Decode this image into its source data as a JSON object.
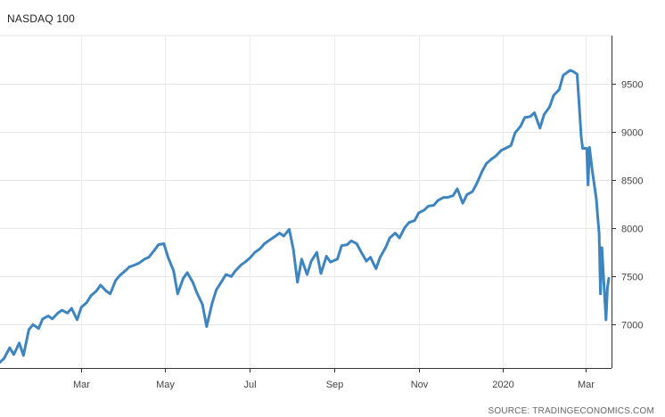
{
  "chart_data": {
    "type": "line",
    "title": "NASDAQ 100",
    "source": "SOURCE: TRADINGECONOMICS.COM",
    "xlabel": "",
    "ylabel": "",
    "ylim": [
      6550,
      10000
    ],
    "grid": true,
    "legend": "none",
    "line_color": "#3d85c0",
    "y_ticks": [
      7000,
      7500,
      8000,
      8500,
      9000,
      9500
    ],
    "y_tick_labels": [
      "7000",
      "7500",
      "8000",
      "8500",
      "9000",
      "9500"
    ],
    "x_ticks": [
      "2019-03-01",
      "2019-05-01",
      "2019-07-01",
      "2019-09-01",
      "2019-11-01",
      "2020-01-01",
      "2020-03-01"
    ],
    "x_tick_labels": [
      "Mar",
      "May",
      "Jul",
      "Sep",
      "Nov",
      "2020",
      "Mar"
    ],
    "xlim": [
      "2019-01-01",
      "2020-03-20"
    ],
    "series": [
      {
        "name": "",
        "x": [
          "2019-01-01",
          "2019-01-04",
          "2019-01-08",
          "2019-01-11",
          "2019-01-15",
          "2019-01-18",
          "2019-01-22",
          "2019-01-25",
          "2019-01-29",
          "2019-02-01",
          "2019-02-05",
          "2019-02-08",
          "2019-02-12",
          "2019-02-15",
          "2019-02-19",
          "2019-02-22",
          "2019-02-26",
          "2019-03-01",
          "2019-03-05",
          "2019-03-08",
          "2019-03-12",
          "2019-03-15",
          "2019-03-19",
          "2019-03-22",
          "2019-03-26",
          "2019-03-29",
          "2019-04-02",
          "2019-04-05",
          "2019-04-09",
          "2019-04-12",
          "2019-04-16",
          "2019-04-19",
          "2019-04-23",
          "2019-04-26",
          "2019-04-30",
          "2019-05-03",
          "2019-05-07",
          "2019-05-10",
          "2019-05-14",
          "2019-05-17",
          "2019-05-21",
          "2019-05-24",
          "2019-05-28",
          "2019-05-31",
          "2019-06-04",
          "2019-06-07",
          "2019-06-11",
          "2019-06-14",
          "2019-06-18",
          "2019-06-21",
          "2019-06-25",
          "2019-06-28",
          "2019-07-02",
          "2019-07-05",
          "2019-07-09",
          "2019-07-12",
          "2019-07-16",
          "2019-07-19",
          "2019-07-23",
          "2019-07-26",
          "2019-07-30",
          "2019-08-02",
          "2019-08-05",
          "2019-08-08",
          "2019-08-12",
          "2019-08-15",
          "2019-08-19",
          "2019-08-22",
          "2019-08-26",
          "2019-08-29",
          "2019-09-03",
          "2019-09-06",
          "2019-09-10",
          "2019-09-13",
          "2019-09-17",
          "2019-09-20",
          "2019-09-24",
          "2019-09-27",
          "2019-10-01",
          "2019-10-04",
          "2019-10-08",
          "2019-10-11",
          "2019-10-15",
          "2019-10-18",
          "2019-10-22",
          "2019-10-25",
          "2019-10-29",
          "2019-11-01",
          "2019-11-05",
          "2019-11-08",
          "2019-11-12",
          "2019-11-15",
          "2019-11-19",
          "2019-11-22",
          "2019-11-26",
          "2019-11-29",
          "2019-12-03",
          "2019-12-06",
          "2019-12-10",
          "2019-12-13",
          "2019-12-17",
          "2019-12-20",
          "2019-12-24",
          "2019-12-27",
          "2019-12-31",
          "2020-01-03",
          "2020-01-07",
          "2020-01-10",
          "2020-01-14",
          "2020-01-17",
          "2020-01-21",
          "2020-01-24",
          "2020-01-28",
          "2020-01-31",
          "2020-02-04",
          "2020-02-07",
          "2020-02-11",
          "2020-02-14",
          "2020-02-19",
          "2020-02-21",
          "2020-02-24",
          "2020-02-25",
          "2020-02-27",
          "2020-02-28",
          "2020-03-02",
          "2020-03-03",
          "2020-03-04",
          "2020-03-06",
          "2020-03-09",
          "2020-03-10",
          "2020-03-11",
          "2020-03-12",
          "2020-03-13",
          "2020-03-16",
          "2020-03-17",
          "2020-03-18"
        ],
        "values": [
          6610,
          6650,
          6760,
          6690,
          6810,
          6680,
          6950,
          7000,
          6960,
          7060,
          7090,
          7060,
          7120,
          7150,
          7120,
          7170,
          7050,
          7180,
          7230,
          7300,
          7350,
          7410,
          7350,
          7320,
          7460,
          7510,
          7560,
          7600,
          7620,
          7640,
          7680,
          7700,
          7770,
          7830,
          7840,
          7700,
          7560,
          7320,
          7480,
          7540,
          7440,
          7330,
          7210,
          6980,
          7220,
          7360,
          7450,
          7520,
          7500,
          7560,
          7620,
          7650,
          7700,
          7750,
          7790,
          7840,
          7880,
          7910,
          7950,
          7920,
          7990,
          7780,
          7440,
          7680,
          7520,
          7660,
          7750,
          7530,
          7710,
          7650,
          7680,
          7820,
          7830,
          7870,
          7840,
          7760,
          7660,
          7700,
          7580,
          7700,
          7800,
          7900,
          7950,
          7900,
          8010,
          8060,
          8080,
          8160,
          8190,
          8230,
          8240,
          8290,
          8320,
          8320,
          8340,
          8410,
          8260,
          8350,
          8380,
          8460,
          8590,
          8670,
          8720,
          8750,
          8810,
          8830,
          8860,
          8990,
          9060,
          9150,
          9160,
          9200,
          9040,
          9180,
          9260,
          9380,
          9440,
          9590,
          9640,
          9630,
          9600,
          9400,
          8950,
          8830,
          8830,
          8450,
          8840,
          8600,
          8300,
          8120,
          7950,
          7320,
          7800,
          7050,
          7380,
          7480
        ]
      }
    ]
  }
}
